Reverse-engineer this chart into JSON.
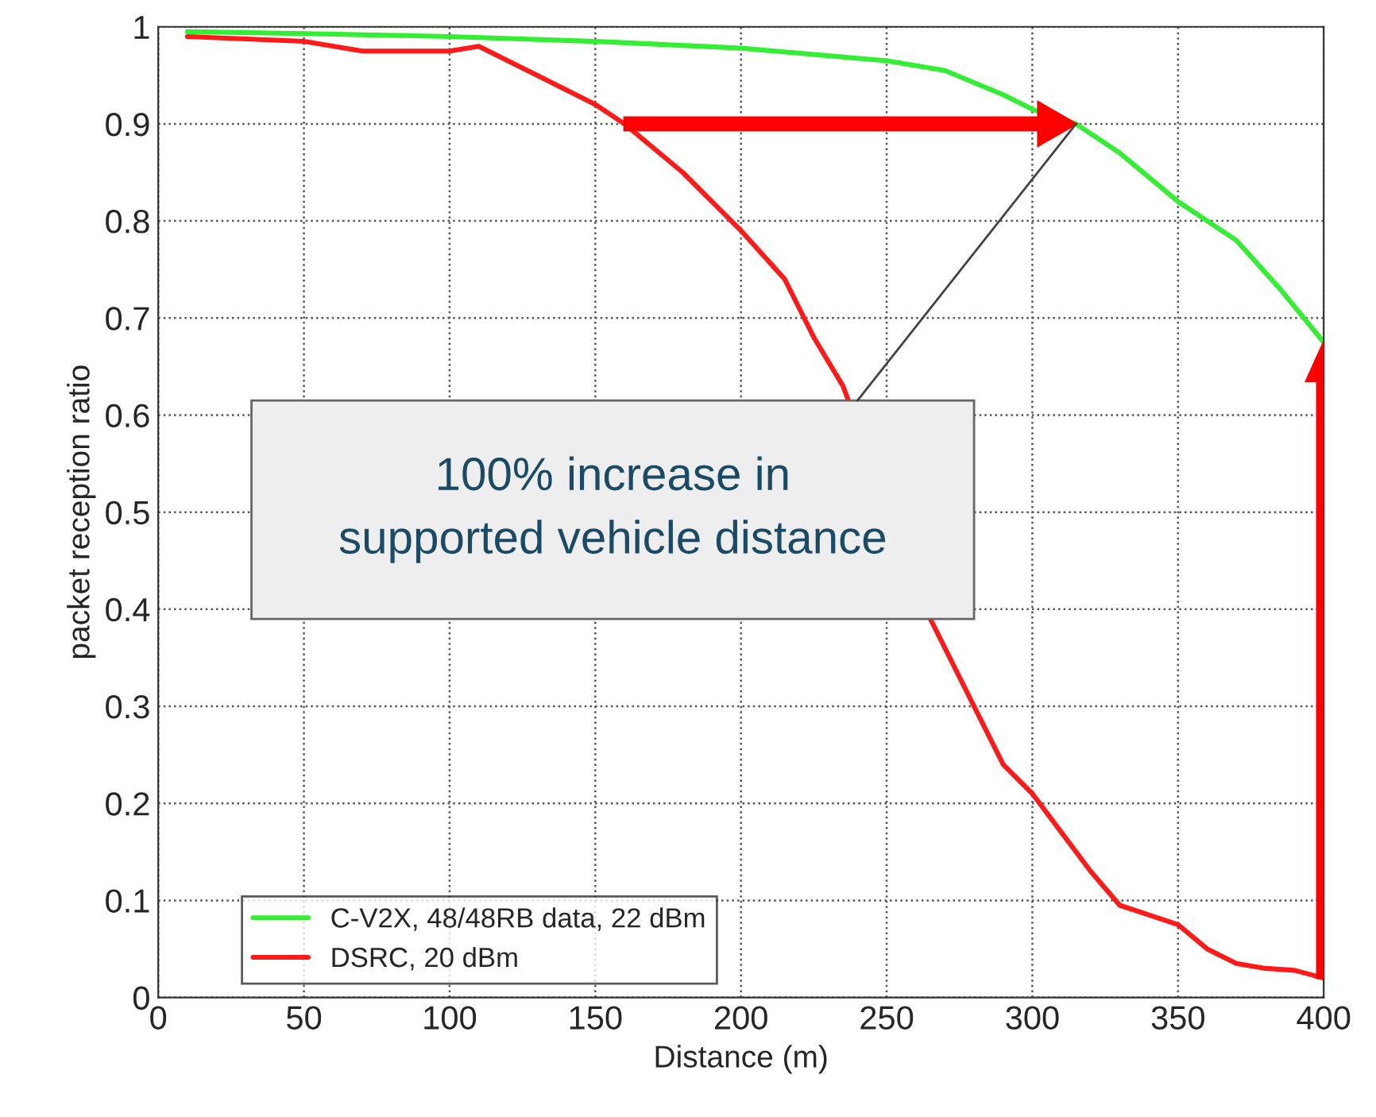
{
  "chart_data": {
    "type": "line",
    "xlabel": "Distance (m)",
    "ylabel": "packet reception ratio",
    "xlim": [
      0,
      400
    ],
    "ylim": [
      0,
      1
    ],
    "xticks": [
      0,
      50,
      100,
      150,
      200,
      250,
      300,
      350,
      400
    ],
    "yticks": [
      0,
      0.1,
      0.2,
      0.3,
      0.4,
      0.5,
      0.6,
      0.7,
      0.8,
      0.9,
      1
    ],
    "grid": true,
    "legend": "bottom left",
    "line_style": "solid",
    "marker": "none",
    "series": [
      {
        "name": "C-V2X, 48/48RB data, 22 dBm",
        "color": "#33ee33",
        "x": [
          10,
          50,
          100,
          150,
          200,
          250,
          270,
          290,
          300,
          315,
          330,
          340,
          350,
          370,
          385,
          400
        ],
        "values": [
          0.995,
          0.993,
          0.99,
          0.985,
          0.978,
          0.965,
          0.955,
          0.93,
          0.915,
          0.9,
          0.87,
          0.845,
          0.82,
          0.78,
          0.73,
          0.675
        ]
      },
      {
        "name": "DSRC, 20 dBm",
        "color": "#ff1a1a",
        "x": [
          10,
          50,
          70,
          100,
          110,
          120,
          130,
          150,
          160,
          180,
          200,
          215,
          225,
          235,
          265,
          280,
          290,
          300,
          310,
          320,
          330,
          340,
          350,
          360,
          370,
          380,
          390,
          400
        ],
        "values": [
          0.99,
          0.985,
          0.975,
          0.975,
          0.98,
          0.965,
          0.95,
          0.92,
          0.9,
          0.85,
          0.79,
          0.74,
          0.68,
          0.63,
          0.39,
          0.3,
          0.24,
          0.21,
          0.17,
          0.13,
          0.095,
          0.085,
          0.075,
          0.05,
          0.035,
          0.03,
          0.028,
          0.02
        ]
      }
    ],
    "annotations": [
      "100% increase in\nsupported vehicle distance"
    ]
  }
}
